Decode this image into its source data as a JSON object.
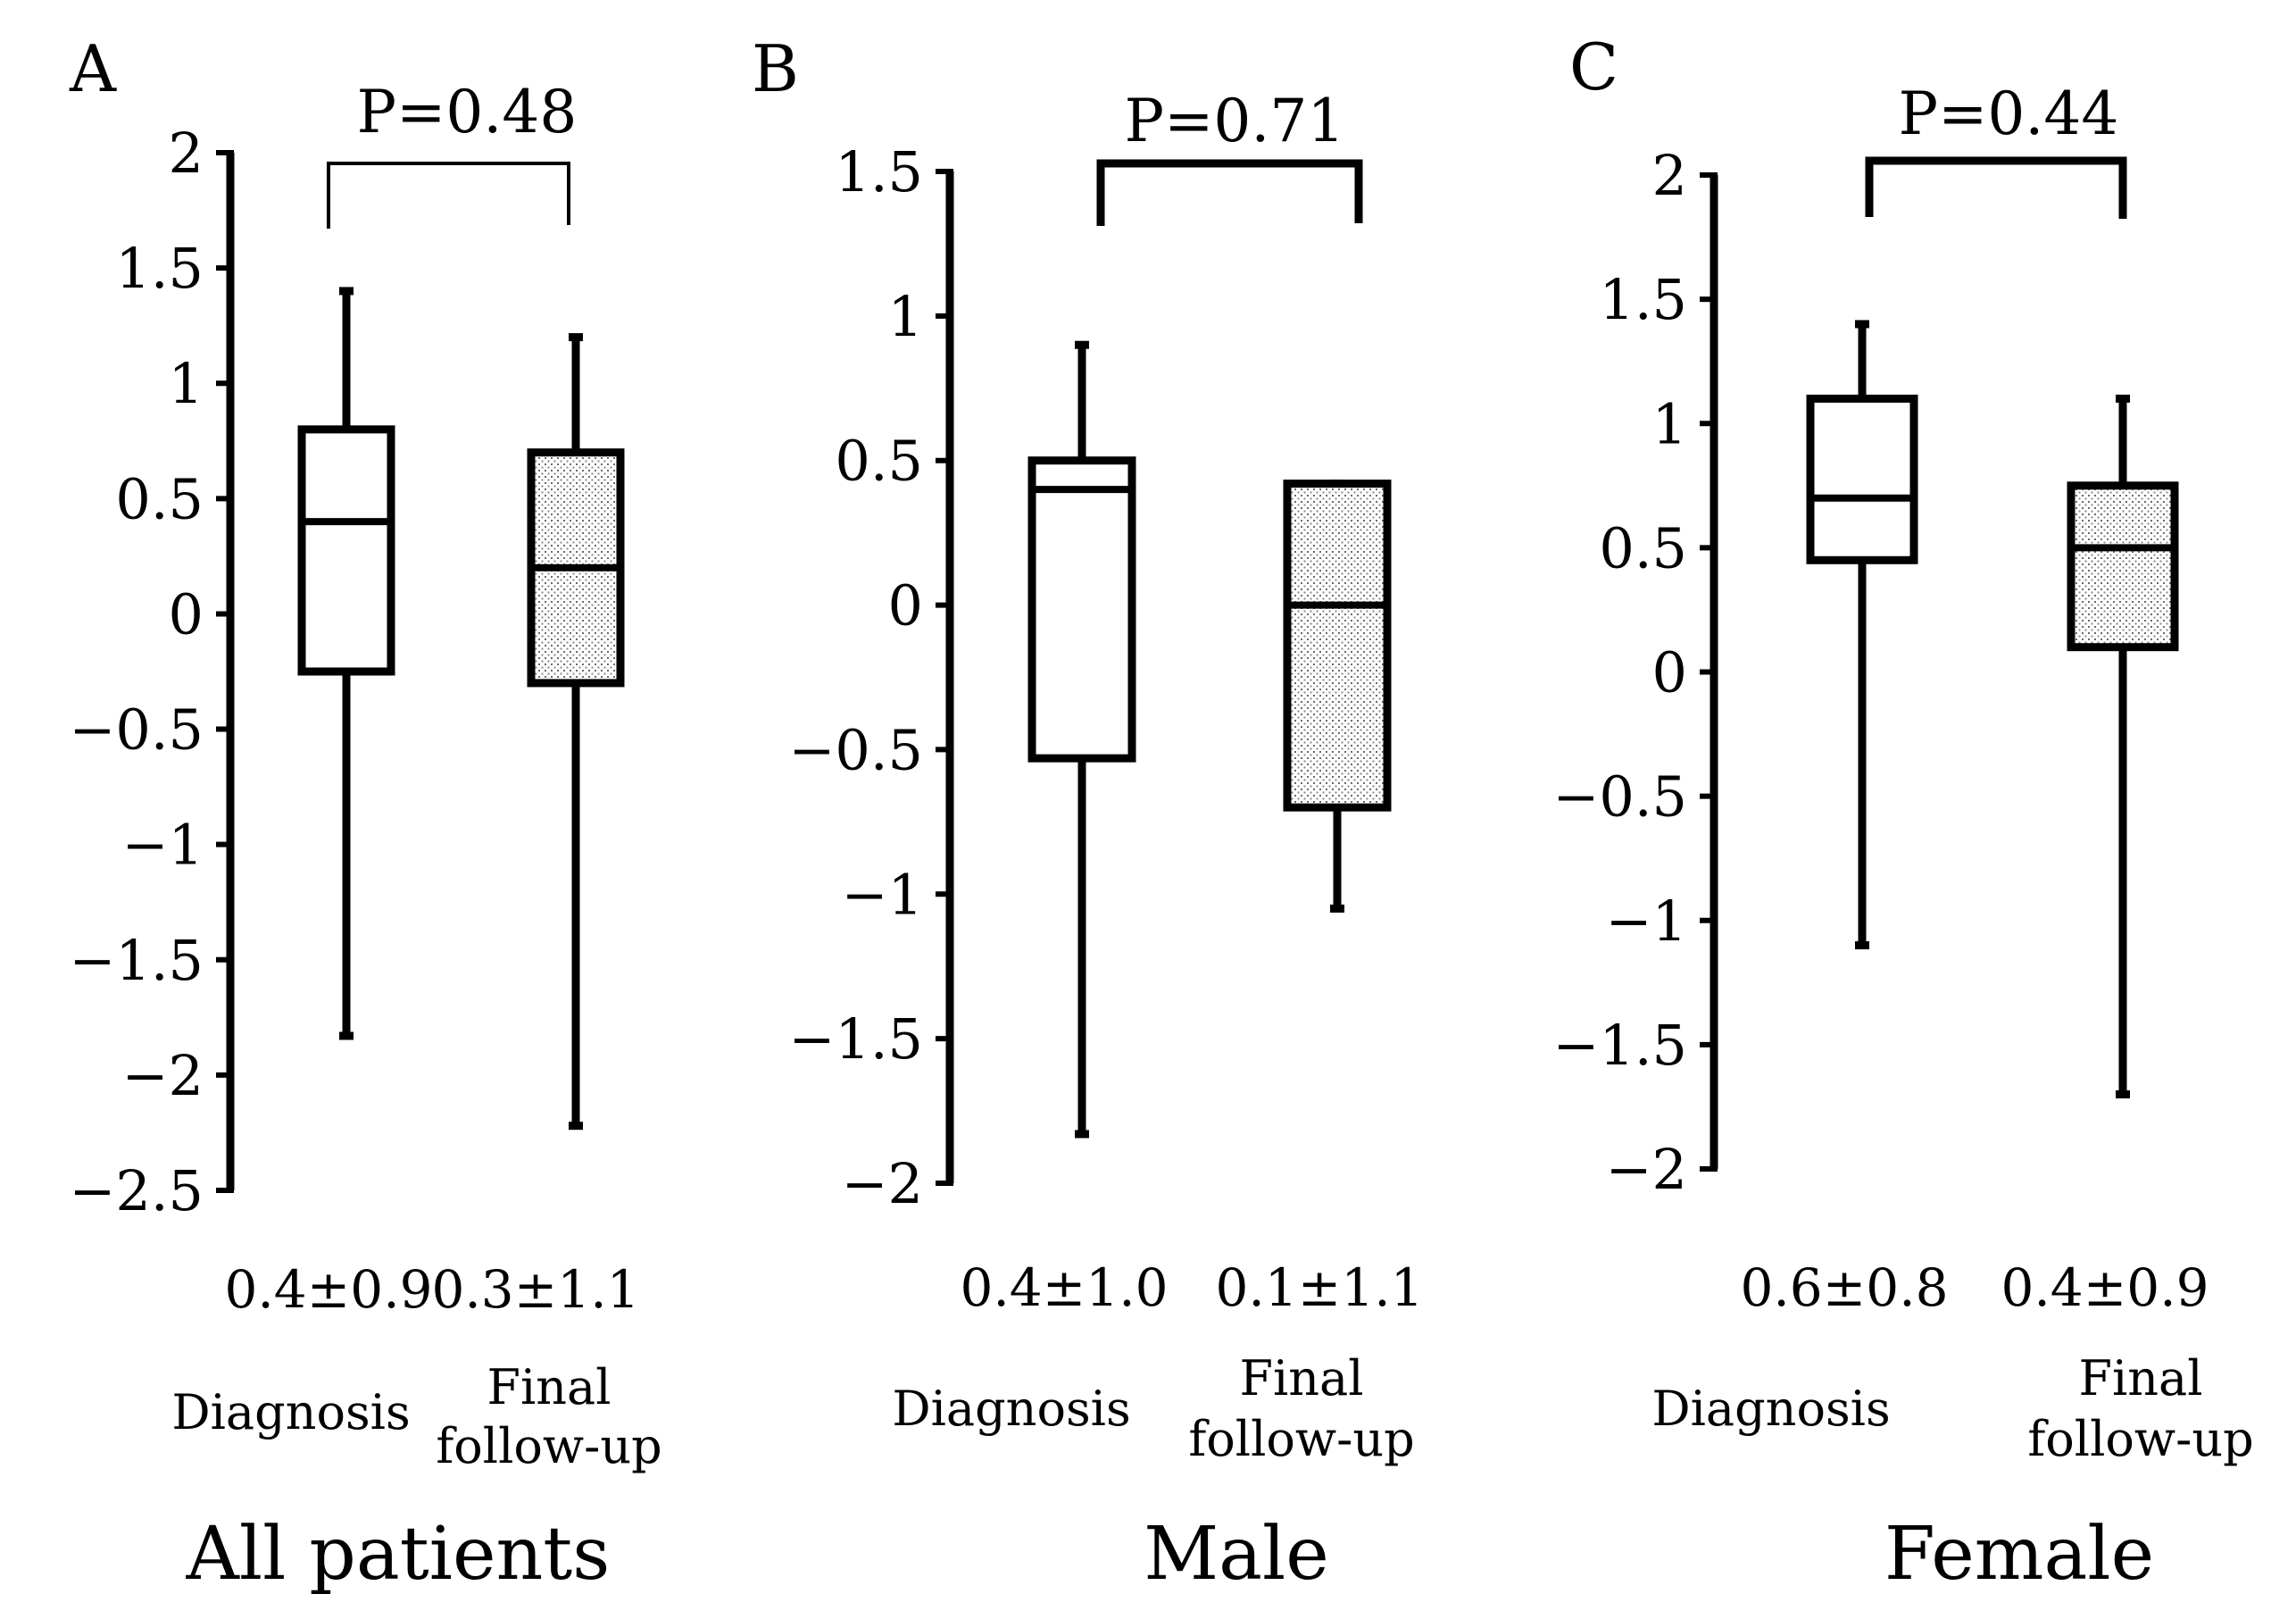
{
  "chart_data": [
    {
      "type": "box",
      "panel": "A",
      "group_title": "All patients",
      "p_value": "P=0.48",
      "ylim": [
        -2.5,
        2
      ],
      "ytick_step": 0.5,
      "ytick_labels": [
        "2",
        "1.5",
        "1",
        "0.5",
        "0",
        "−0.5",
        "−1",
        "−1.5",
        "−2",
        "−2.5"
      ],
      "boxes": [
        {
          "category": "Diagnosis",
          "category_lines": [
            "Diagnosis"
          ],
          "stat": "0.4±0.9",
          "whisker_low": -1.83,
          "q1": -0.25,
          "median": 0.4,
          "q3": 0.8,
          "whisker_high": 1.4,
          "fill": "none"
        },
        {
          "category": "Final follow-up",
          "category_lines": [
            "Final",
            "follow-up"
          ],
          "stat": "0.3±1.1",
          "whisker_low": -2.22,
          "q1": -0.3,
          "median": 0.2,
          "q3": 0.7,
          "whisker_high": 1.2,
          "fill": "dotted"
        }
      ]
    },
    {
      "type": "box",
      "panel": "B",
      "group_title": "Male",
      "p_value": "P=0.71",
      "ylim": [
        -2,
        1.5
      ],
      "ytick_step": 0.5,
      "ytick_labels": [
        "1.5",
        "1",
        "0.5",
        "0",
        "−0.5",
        "−1",
        "−1.5",
        "−2"
      ],
      "boxes": [
        {
          "category": "Diagnosis",
          "category_lines": [
            "Diagnosis"
          ],
          "stat": "0.4±1.0",
          "whisker_low": -1.83,
          "q1": -0.53,
          "median": 0.4,
          "q3": 0.5,
          "whisker_high": 0.9,
          "fill": "none"
        },
        {
          "category": "Final follow-up",
          "category_lines": [
            "Final",
            "follow-up"
          ],
          "stat": "0.1±1.1",
          "whisker_low": -1.05,
          "q1": -0.7,
          "median": 0.0,
          "q3": 0.42,
          "whisker_high": 0.42,
          "fill": "dotted"
        }
      ]
    },
    {
      "type": "box",
      "panel": "C",
      "group_title": "Female",
      "p_value": "P=0.44",
      "ylim": [
        -2,
        2
      ],
      "ytick_step": 0.5,
      "ytick_labels": [
        "2",
        "1.5",
        "1",
        "0.5",
        "0",
        "−0.5",
        "−1",
        "−1.5",
        "−2"
      ],
      "boxes": [
        {
          "category": "Diagnosis",
          "category_lines": [
            "Diagnosis"
          ],
          "stat": "0.6±0.8",
          "whisker_low": -1.1,
          "q1": 0.45,
          "median": 0.7,
          "q3": 1.1,
          "whisker_high": 1.4,
          "fill": "none"
        },
        {
          "category": "Final follow-up",
          "category_lines": [
            "Final",
            "follow-up"
          ],
          "stat": "0.4±0.9",
          "whisker_low": -1.7,
          "q1": 0.1,
          "median": 0.5,
          "q3": 0.75,
          "whisker_high": 1.1,
          "fill": "dotted"
        }
      ]
    }
  ]
}
